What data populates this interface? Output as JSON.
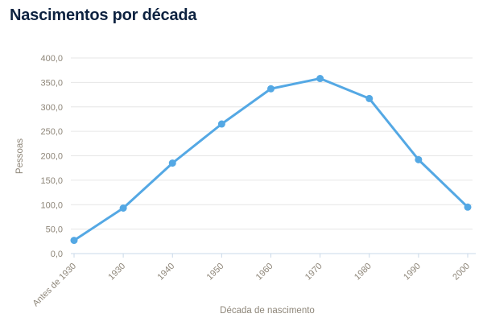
{
  "chart_data": {
    "type": "line",
    "title": "Nascimentos por década",
    "xlabel": "Década de nascimento",
    "ylabel": "Pessoas",
    "categories": [
      "Antes de 1930",
      "1930",
      "1940",
      "1950",
      "1960",
      "1970",
      "1980",
      "1990",
      "2000"
    ],
    "values": [
      27,
      93,
      185,
      265,
      337,
      358,
      317,
      192,
      95
    ],
    "ylim": [
      0,
      400
    ],
    "y_tick_step": 50,
    "y_tick_labels": [
      "0,0",
      "50,0",
      "100,0",
      "150,0",
      "200,0",
      "250,0",
      "300,0",
      "350,0",
      "400,0"
    ],
    "grid": true,
    "legend": "none",
    "x_labels_rotation_deg": -45,
    "colors": {
      "line": "#54a8e4",
      "marker": "#54a8e4",
      "title": "#0d2240",
      "axis_labels": "#8e8679",
      "gridline": "#e6e6e6",
      "axis_line": "#c9d9e8",
      "background": "#ffffff"
    }
  }
}
